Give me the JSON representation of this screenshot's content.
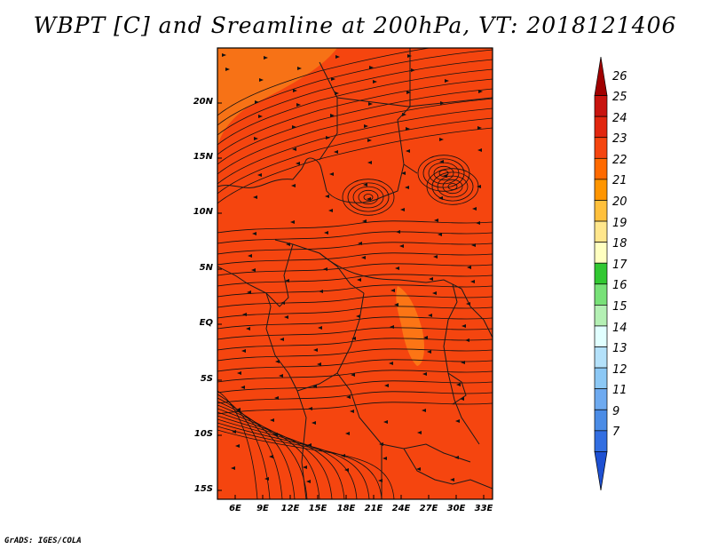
{
  "title": "WBPT [C] and Sreamline at 200hPa, VT: 2018121406",
  "credit": "GrADS: IGES/COLA",
  "map": {
    "field_color": "#f5450f",
    "lat_labels": [
      "20N",
      "15N",
      "10N",
      "5N",
      "EQ",
      "5S",
      "10S",
      "15S"
    ],
    "lon_labels": [
      "6E",
      "9E",
      "12E",
      "15E",
      "18E",
      "21E",
      "24E",
      "27E",
      "30E",
      "33E"
    ]
  },
  "colorbar": {
    "labels": [
      "26",
      "25",
      "24",
      "23",
      "22",
      "21",
      "20",
      "19",
      "18",
      "17",
      "16",
      "15",
      "14",
      "13",
      "12",
      "11",
      "9",
      "7"
    ],
    "colors": [
      "#a00000",
      "#c8140f",
      "#e1260f",
      "#f5450f",
      "#ff6a00",
      "#ff9500",
      "#ffc03c",
      "#ffe68c",
      "#ffffc0",
      "#32c832",
      "#78e178",
      "#b4f0b4",
      "#e1ffff",
      "#b4e1fa",
      "#8cc8f5",
      "#6eaaf0",
      "#4b8ce6",
      "#326ee1",
      "#1e50d2"
    ]
  }
}
